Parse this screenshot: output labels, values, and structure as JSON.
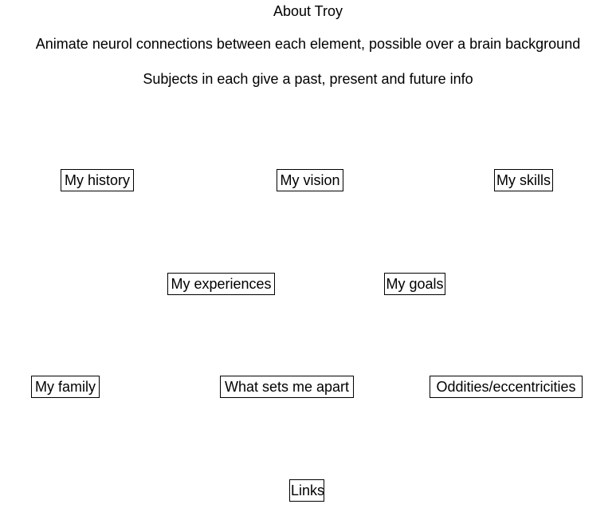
{
  "header": {
    "title": "About Troy",
    "note": "Animate neurol connections between each element, possible over a brain background",
    "subtitle": "Subjects in each give a past, present and future info"
  },
  "boxes": {
    "history": "My history",
    "vision": "My vision",
    "skills": "My skills",
    "experiences": "My experiences",
    "goals": "My goals",
    "family": "My family",
    "apart": "What sets me apart",
    "oddities": "Oddities/eccentricities",
    "links": "Links"
  }
}
